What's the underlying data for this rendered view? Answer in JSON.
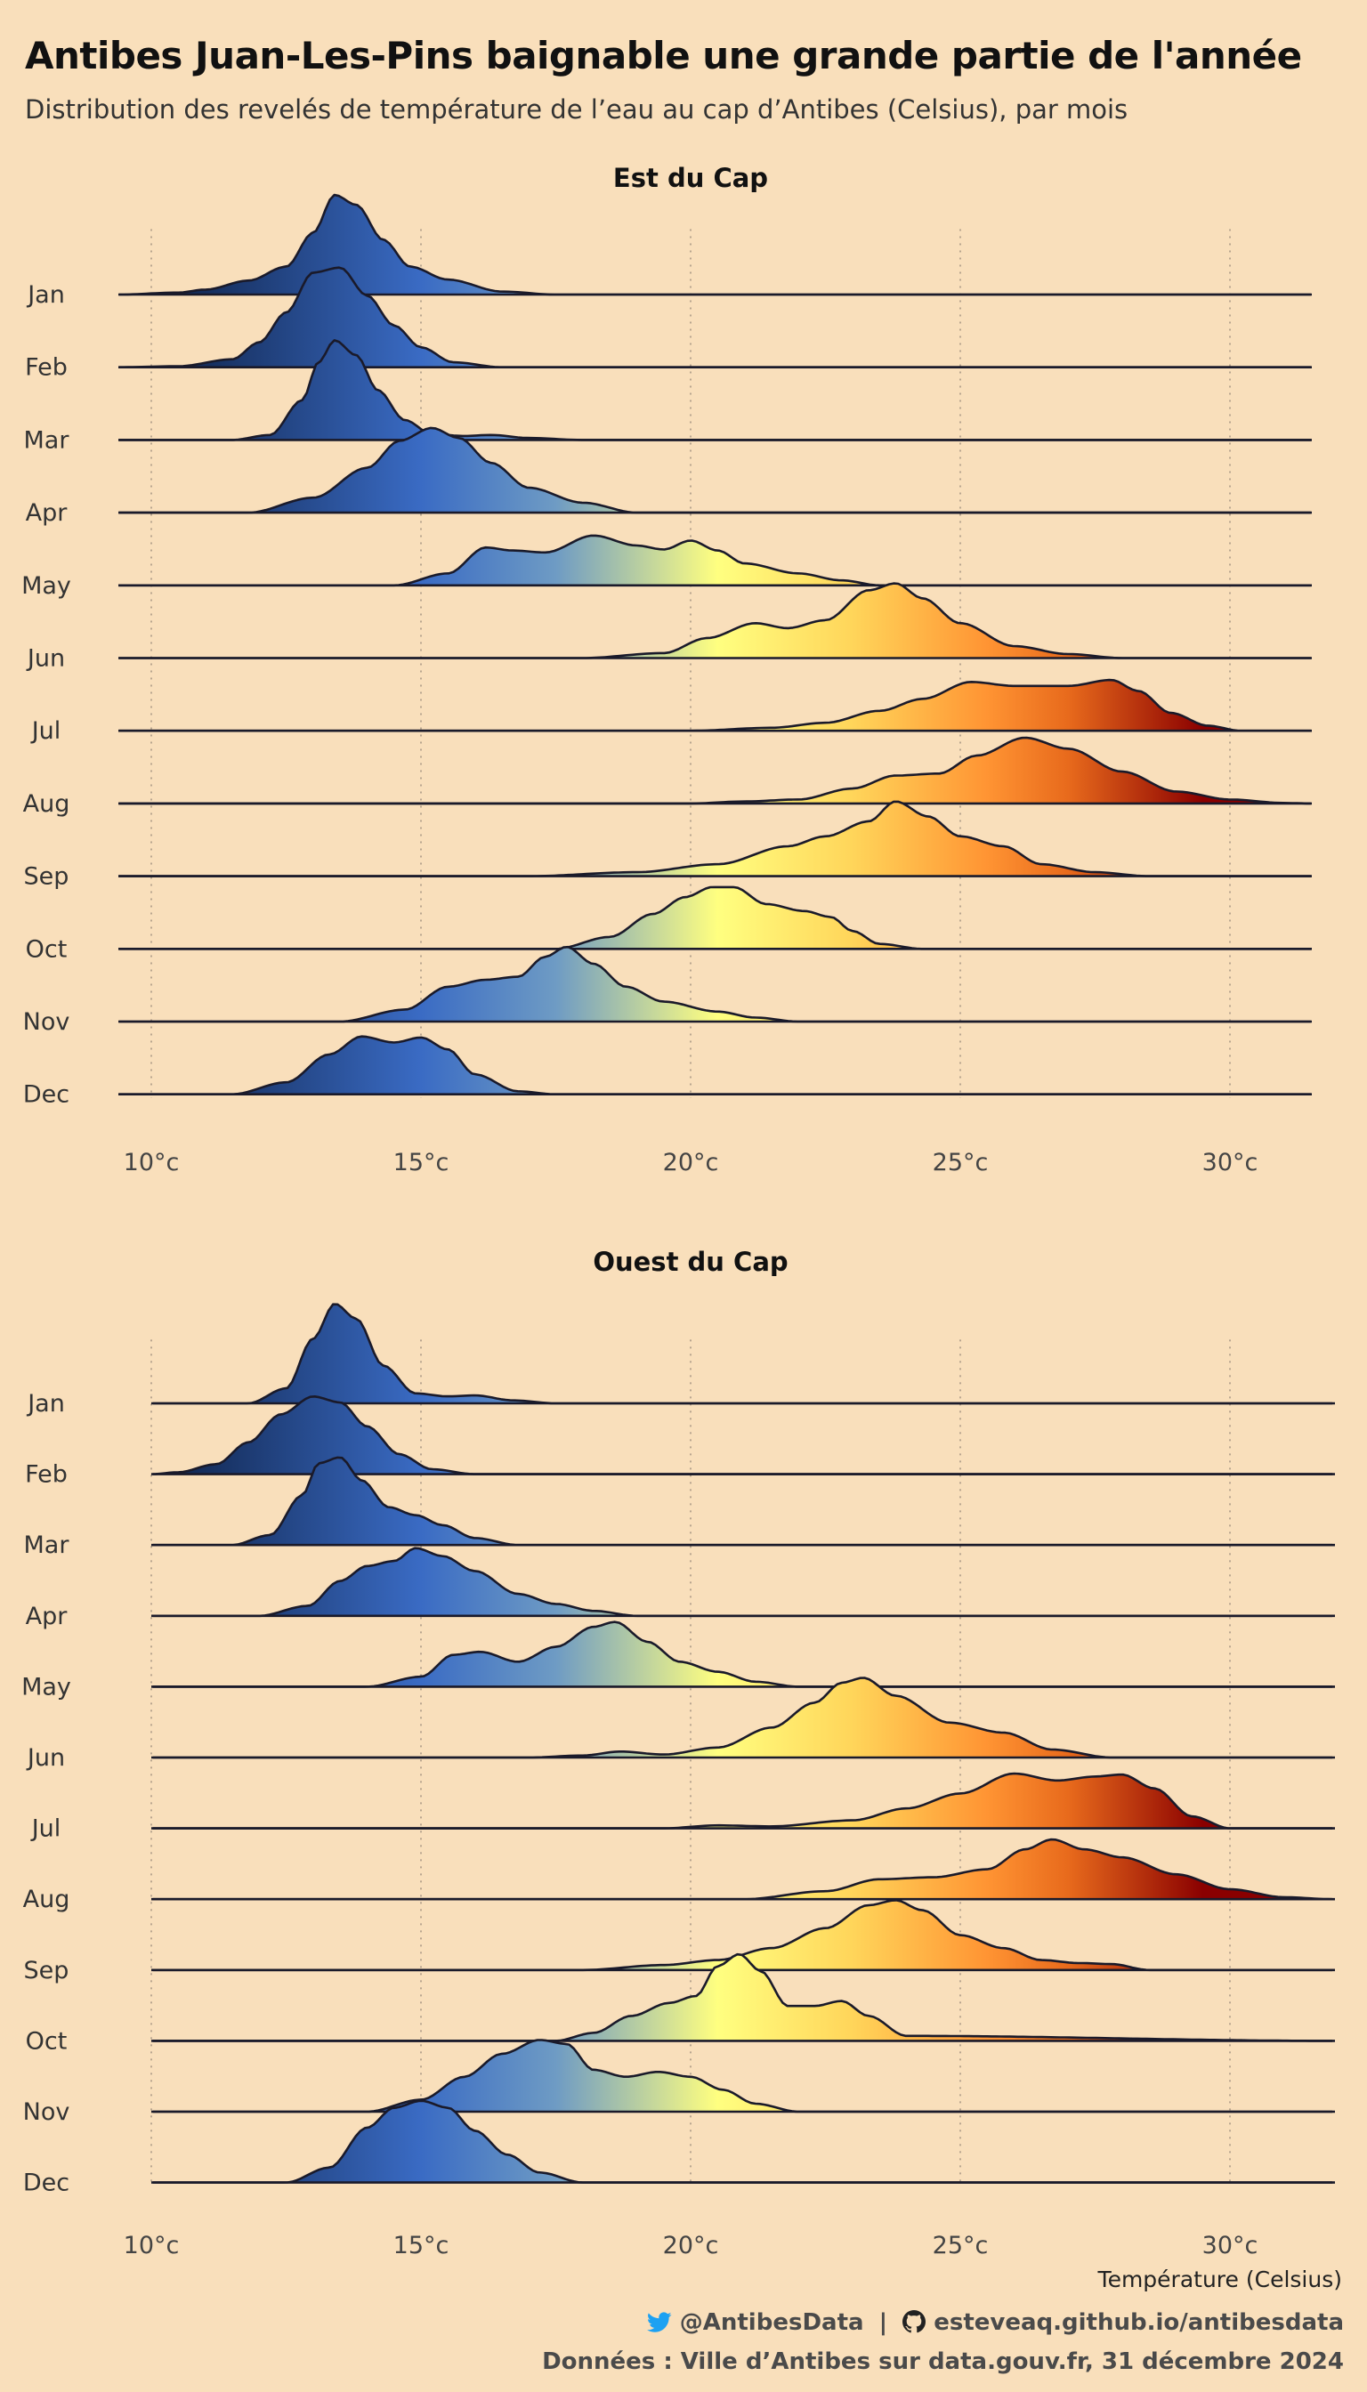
{
  "title": "Antibes Juan-Les-Pins baignable une grande partie de l'année",
  "subtitle": "Distribution des revelés de température de l’eau au cap d’Antibes (Celsius), par mois",
  "footer": {
    "twitter": "@AntibesData",
    "separator": "|",
    "github": "esteveaq.github.io/antibesdata",
    "source": "Données : Ville d’Antibes sur data.gouv.fr, 31 décembre 2024"
  },
  "icons": {
    "twitter": "twitter-bird-icon",
    "github": "github-octocat-icon"
  },
  "colors": {
    "background": "#f9dfbb",
    "gradient_stops": [
      {
        "t": 10,
        "color": "#0d2045"
      },
      {
        "t": 15,
        "color": "#3a6bc4"
      },
      {
        "t": 17.5,
        "color": "#6e9bc4"
      },
      {
        "t": 20.5,
        "color": "#ffff80"
      },
      {
        "t": 23,
        "color": "#ffd55a"
      },
      {
        "t": 25.5,
        "color": "#ff9433"
      },
      {
        "t": 27,
        "color": "#e86a1c"
      },
      {
        "t": 29.5,
        "color": "#8a0000"
      }
    ]
  },
  "chart_data": [
    {
      "type": "ridgeline",
      "title": "Est du Cap",
      "xlabel": "",
      "x_ticks": [
        10,
        15,
        20,
        25,
        30
      ],
      "x_tick_labels": [
        "10°c",
        "15°c",
        "20°c",
        "25°c",
        "30°c"
      ],
      "xlim": [
        9.4,
        31.5
      ],
      "grid": "vertical dotted at ticks",
      "categories": [
        "Jan",
        "Feb",
        "Mar",
        "Apr",
        "May",
        "Jun",
        "Jul",
        "Aug",
        "Sep",
        "Oct",
        "Nov",
        "Dec"
      ],
      "series": [
        {
          "name": "Jan",
          "x": [
            9.4,
            10.5,
            11.0,
            11.8,
            12.5,
            13.0,
            13.4,
            13.8,
            14.3,
            14.8,
            15.5,
            16.5,
            17.5,
            31.5
          ],
          "density": [
            0,
            0.02,
            0.05,
            0.14,
            0.28,
            0.62,
            1.0,
            0.9,
            0.55,
            0.28,
            0.15,
            0.03,
            0,
            0
          ]
        },
        {
          "name": "Feb",
          "x": [
            9.4,
            10.5,
            11.5,
            12.0,
            12.5,
            13.0,
            13.5,
            14.0,
            14.5,
            15.0,
            15.6,
            16.5,
            31.5
          ],
          "density": [
            0,
            0.01,
            0.08,
            0.25,
            0.55,
            0.95,
            1.0,
            0.72,
            0.42,
            0.2,
            0.05,
            0,
            0
          ]
        },
        {
          "name": "Mar",
          "x": [
            9.4,
            11.5,
            12.2,
            12.8,
            13.1,
            13.4,
            13.8,
            14.2,
            14.7,
            15.2,
            15.8,
            16.3,
            17.0,
            18.0,
            31.5
          ],
          "density": [
            0,
            0,
            0.05,
            0.4,
            0.78,
            1.0,
            0.85,
            0.5,
            0.2,
            0.06,
            0.04,
            0.05,
            0.02,
            0,
            0
          ]
        },
        {
          "name": "Apr",
          "x": [
            9.4,
            11.8,
            13.0,
            14.0,
            14.6,
            15.2,
            15.7,
            16.3,
            17.0,
            18.0,
            19.0,
            31.5
          ],
          "density": [
            0,
            0,
            0.15,
            0.45,
            0.72,
            0.85,
            0.75,
            0.5,
            0.25,
            0.1,
            0,
            0
          ]
        },
        {
          "name": "May",
          "x": [
            9.4,
            14.5,
            15.5,
            16.2,
            16.7,
            17.3,
            18.2,
            19.0,
            19.5,
            20.0,
            20.5,
            21.0,
            22.0,
            22.8,
            23.5,
            31.5
          ],
          "density": [
            0,
            0,
            0.12,
            0.38,
            0.35,
            0.33,
            0.5,
            0.4,
            0.36,
            0.45,
            0.35,
            0.22,
            0.12,
            0.05,
            0,
            0
          ]
        },
        {
          "name": "Jun",
          "x": [
            9.4,
            18.0,
            19.5,
            20.3,
            21.2,
            21.8,
            22.5,
            23.3,
            23.8,
            24.3,
            25.0,
            26.0,
            27.0,
            28.0,
            31.5
          ],
          "density": [
            0,
            0,
            0.05,
            0.2,
            0.35,
            0.3,
            0.38,
            0.68,
            0.75,
            0.6,
            0.35,
            0.12,
            0.04,
            0,
            0
          ]
        },
        {
          "name": "Jul",
          "x": [
            9.4,
            20.0,
            21.5,
            22.5,
            23.5,
            24.3,
            25.2,
            26.0,
            27.0,
            27.8,
            28.3,
            28.9,
            29.6,
            30.2,
            31.5
          ],
          "density": [
            0,
            0,
            0.03,
            0.08,
            0.2,
            0.32,
            0.49,
            0.45,
            0.45,
            0.51,
            0.4,
            0.18,
            0.05,
            0,
            0
          ]
        },
        {
          "name": "Aug",
          "x": [
            9.4,
            20.0,
            21.0,
            22.0,
            23.0,
            23.8,
            24.6,
            25.3,
            26.2,
            27.0,
            28.0,
            29.0,
            30.0,
            31.0,
            31.5
          ],
          "density": [
            0,
            0,
            0.02,
            0.04,
            0.15,
            0.28,
            0.3,
            0.48,
            0.66,
            0.55,
            0.32,
            0.12,
            0.04,
            0.005,
            0
          ]
        },
        {
          "name": "Sep",
          "x": [
            9.4,
            17.0,
            19.0,
            20.5,
            21.8,
            22.5,
            23.3,
            23.8,
            24.4,
            25.0,
            25.8,
            26.5,
            27.5,
            28.5,
            31.5
          ],
          "density": [
            0,
            0,
            0.04,
            0.12,
            0.3,
            0.4,
            0.55,
            0.75,
            0.6,
            0.4,
            0.3,
            0.12,
            0.04,
            0,
            0
          ]
        },
        {
          "name": "Oct",
          "x": [
            9.4,
            17.5,
            18.5,
            19.3,
            19.9,
            20.4,
            20.8,
            21.4,
            22.1,
            22.6,
            23.0,
            23.5,
            24.3,
            31.5
          ],
          "density": [
            0,
            0,
            0.12,
            0.35,
            0.52,
            0.62,
            0.62,
            0.45,
            0.38,
            0.32,
            0.18,
            0.05,
            0,
            0
          ]
        },
        {
          "name": "Nov",
          "x": [
            9.4,
            13.5,
            14.7,
            15.5,
            16.2,
            16.8,
            17.3,
            17.7,
            18.2,
            18.8,
            19.5,
            20.5,
            21.2,
            22.0,
            31.5
          ],
          "density": [
            0,
            0,
            0.12,
            0.35,
            0.42,
            0.45,
            0.65,
            0.75,
            0.58,
            0.35,
            0.2,
            0.1,
            0.04,
            0,
            0
          ]
        },
        {
          "name": "Dec",
          "x": [
            9.4,
            11.5,
            12.5,
            13.3,
            13.9,
            14.5,
            15.0,
            15.5,
            16.0,
            16.8,
            17.5,
            31.5
          ],
          "density": [
            0,
            0,
            0.12,
            0.4,
            0.58,
            0.52,
            0.57,
            0.45,
            0.2,
            0.03,
            0,
            0
          ]
        }
      ]
    },
    {
      "type": "ridgeline",
      "title": "Ouest du Cap",
      "xlabel": "Température (Celsius)",
      "x_ticks": [
        10,
        15,
        20,
        25,
        30
      ],
      "x_tick_labels": [
        "10°c",
        "15°c",
        "20°c",
        "25°c",
        "30°c"
      ],
      "xlim": [
        10,
        31.9
      ],
      "grid": "vertical dotted at ticks",
      "categories": [
        "Jan",
        "Feb",
        "Mar",
        "Apr",
        "May",
        "Jun",
        "Jul",
        "Aug",
        "Sep",
        "Oct",
        "Nov",
        "Dec"
      ],
      "series": [
        {
          "name": "Jan",
          "x": [
            10.0,
            11.8,
            12.5,
            13.0,
            13.4,
            13.8,
            14.3,
            14.9,
            15.5,
            16.0,
            16.7,
            17.5,
            31.9
          ],
          "density": [
            0,
            0,
            0.15,
            0.65,
            1.0,
            0.85,
            0.38,
            0.1,
            0.07,
            0.08,
            0.03,
            0,
            0
          ]
        },
        {
          "name": "Feb",
          "x": [
            10.0,
            10.5,
            11.2,
            11.8,
            12.4,
            13.0,
            13.5,
            14.0,
            14.6,
            15.2,
            16.0,
            31.9
          ],
          "density": [
            0,
            0.02,
            0.1,
            0.32,
            0.6,
            0.78,
            0.72,
            0.48,
            0.2,
            0.05,
            0,
            0
          ]
        },
        {
          "name": "Mar",
          "x": [
            10.0,
            11.5,
            12.2,
            12.8,
            13.1,
            13.5,
            13.9,
            14.4,
            14.9,
            15.4,
            16.0,
            16.8,
            31.9
          ],
          "density": [
            0,
            0,
            0.1,
            0.5,
            0.82,
            0.88,
            0.65,
            0.38,
            0.3,
            0.2,
            0.07,
            0,
            0
          ]
        },
        {
          "name": "Apr",
          "x": [
            10.0,
            12.0,
            12.9,
            13.5,
            14.0,
            14.5,
            14.9,
            15.4,
            16.0,
            16.8,
            17.5,
            18.2,
            19.0,
            31.9
          ],
          "density": [
            0,
            0,
            0.1,
            0.35,
            0.5,
            0.55,
            0.68,
            0.6,
            0.45,
            0.22,
            0.12,
            0.05,
            0,
            0
          ]
        },
        {
          "name": "May",
          "x": [
            10.0,
            14.0,
            15.0,
            15.6,
            16.1,
            16.8,
            17.5,
            18.2,
            18.6,
            19.2,
            19.8,
            20.5,
            21.2,
            22.0,
            31.9
          ],
          "density": [
            0,
            0,
            0.1,
            0.32,
            0.35,
            0.25,
            0.4,
            0.6,
            0.65,
            0.45,
            0.25,
            0.15,
            0.05,
            0,
            0
          ]
        },
        {
          "name": "Jun",
          "x": [
            10.0,
            17.0,
            18.0,
            18.7,
            19.5,
            20.5,
            21.5,
            22.3,
            22.8,
            23.2,
            23.8,
            24.8,
            25.8,
            26.7,
            27.8,
            31.9
          ],
          "density": [
            0,
            0,
            0.02,
            0.06,
            0.03,
            0.1,
            0.3,
            0.55,
            0.75,
            0.8,
            0.62,
            0.35,
            0.25,
            0.08,
            0,
            0
          ]
        },
        {
          "name": "Jul",
          "x": [
            10.0,
            19.5,
            20.5,
            21.5,
            23.0,
            24.0,
            25.0,
            26.0,
            26.8,
            27.5,
            28.0,
            28.6,
            29.3,
            30.0,
            31.9
          ],
          "density": [
            0,
            0,
            0.03,
            0.02,
            0.08,
            0.2,
            0.35,
            0.55,
            0.48,
            0.52,
            0.54,
            0.4,
            0.12,
            0,
            0
          ]
        },
        {
          "name": "Aug",
          "x": [
            10.0,
            21.0,
            22.5,
            23.5,
            24.5,
            25.5,
            26.2,
            26.7,
            27.3,
            28.0,
            29.0,
            30.0,
            31.0,
            31.9
          ],
          "density": [
            0,
            0,
            0.08,
            0.2,
            0.22,
            0.3,
            0.5,
            0.6,
            0.5,
            0.42,
            0.25,
            0.1,
            0.02,
            0
          ]
        },
        {
          "name": "Sep",
          "x": [
            10.0,
            18.0,
            19.5,
            20.5,
            21.5,
            22.5,
            23.3,
            23.8,
            24.3,
            25.0,
            25.8,
            26.5,
            27.2,
            27.8,
            28.5,
            31.9
          ],
          "density": [
            0,
            0,
            0.05,
            0.1,
            0.22,
            0.42,
            0.65,
            0.7,
            0.6,
            0.35,
            0.22,
            0.1,
            0.07,
            0.06,
            0,
            0
          ]
        },
        {
          "name": "Oct",
          "x": [
            10.0,
            17.5,
            18.2,
            18.9,
            19.6,
            20.1,
            20.5,
            20.9,
            21.3,
            21.8,
            22.3,
            22.8,
            23.3,
            24.0,
            31.9
          ],
          "density": [
            0,
            0,
            0.08,
            0.25,
            0.38,
            0.45,
            0.75,
            0.87,
            0.7,
            0.35,
            0.35,
            0.4,
            0.25,
            0.05,
            0
          ]
        },
        {
          "name": "Nov",
          "x": [
            10.0,
            14.0,
            15.0,
            15.8,
            16.5,
            17.2,
            17.7,
            18.2,
            18.8,
            19.4,
            20.0,
            20.6,
            21.2,
            22.0,
            31.9
          ],
          "density": [
            0,
            0,
            0.12,
            0.35,
            0.58,
            0.72,
            0.68,
            0.42,
            0.35,
            0.4,
            0.35,
            0.22,
            0.08,
            0,
            0
          ]
        },
        {
          "name": "Dec",
          "x": [
            10.0,
            12.5,
            13.3,
            14.0,
            14.5,
            15.0,
            15.5,
            16.0,
            16.6,
            17.2,
            18.0,
            31.9
          ],
          "density": [
            0,
            0,
            0.15,
            0.55,
            0.75,
            0.82,
            0.75,
            0.52,
            0.28,
            0.1,
            0,
            0
          ]
        }
      ]
    }
  ]
}
